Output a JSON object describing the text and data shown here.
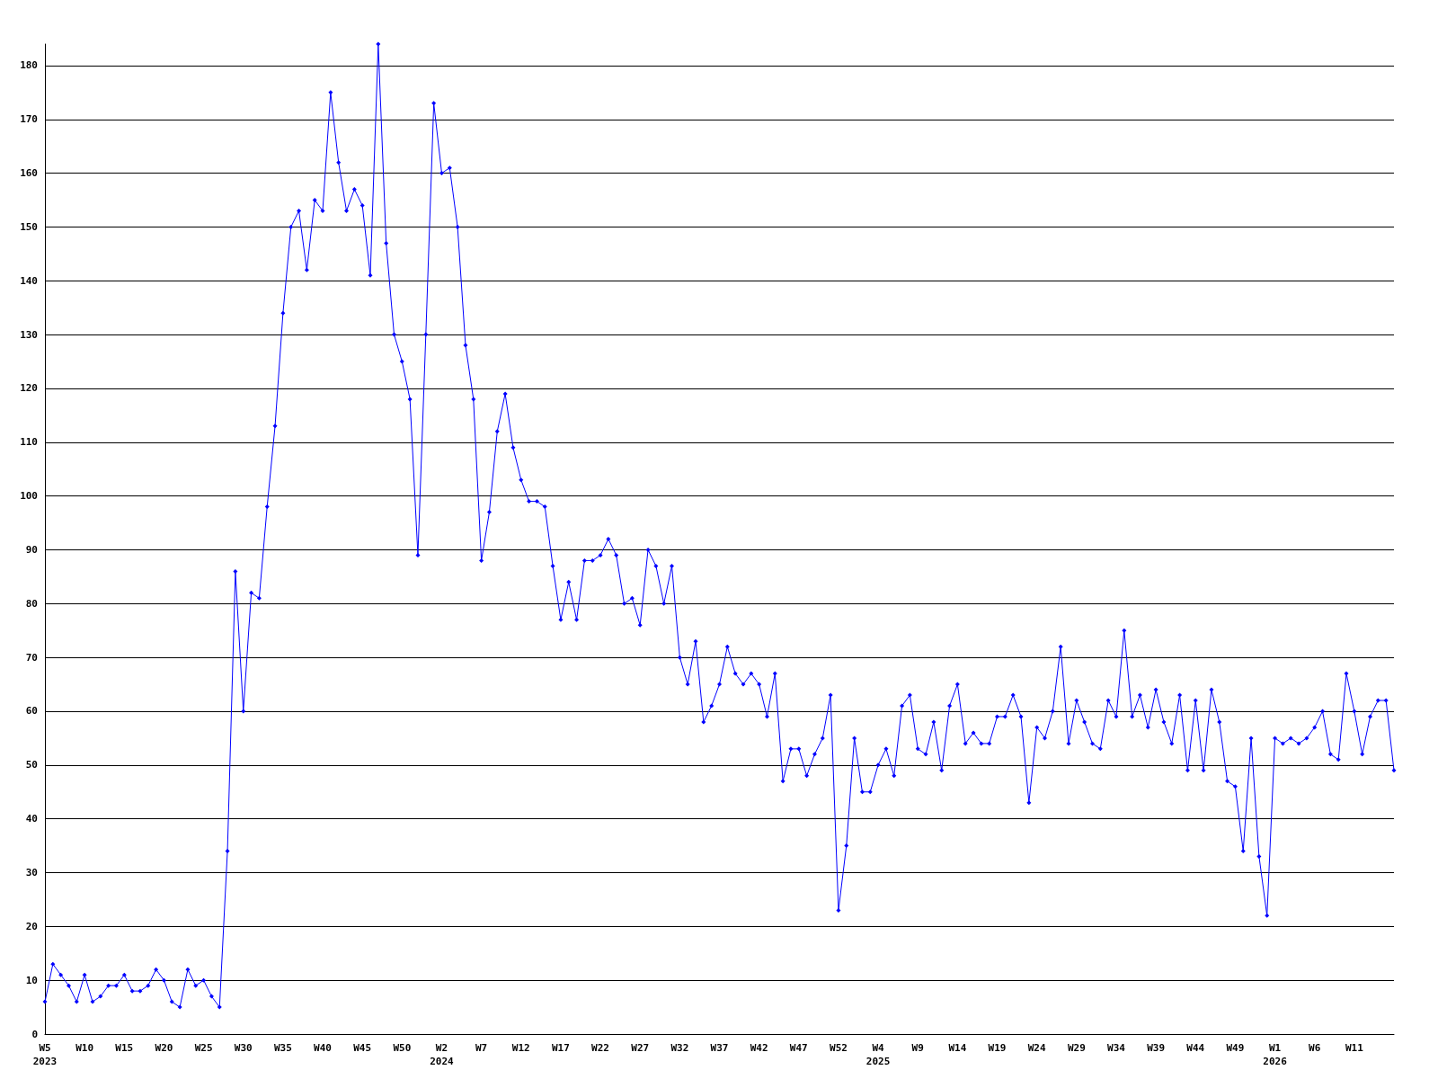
{
  "chart_data": {
    "type": "line",
    "categories": [
      "W5\n2023",
      null,
      null,
      null,
      null,
      "W10",
      null,
      null,
      null,
      null,
      "W15",
      null,
      null,
      null,
      null,
      "W20",
      null,
      null,
      null,
      null,
      "W25",
      null,
      null,
      null,
      null,
      "W30",
      null,
      null,
      null,
      null,
      "W35",
      null,
      null,
      null,
      null,
      "W40",
      null,
      null,
      null,
      null,
      "W45",
      null,
      null,
      null,
      null,
      "W50",
      null,
      null,
      null,
      null,
      "W2\n2024",
      null,
      null,
      null,
      null,
      "W7",
      null,
      null,
      null,
      null,
      "W12",
      null,
      null,
      null,
      null,
      "W17",
      null,
      null,
      null,
      null,
      "W22",
      null,
      null,
      null,
      null,
      "W27",
      null,
      null,
      null,
      null,
      "W32",
      null,
      null,
      null,
      null,
      "W37",
      null,
      null,
      null,
      null,
      "W42",
      null,
      null,
      null,
      null,
      "W47",
      null,
      null,
      null,
      null,
      "W52",
      null,
      null,
      null,
      null,
      "W4\n2025",
      null,
      null,
      null,
      null,
      "W9",
      null,
      null,
      null,
      null,
      "W14",
      null,
      null,
      null,
      null,
      "W19",
      null,
      null,
      null,
      null,
      "W24",
      null,
      null,
      null,
      null,
      "W29",
      null,
      null,
      null,
      null,
      "W34",
      null,
      null,
      null,
      null,
      "W39",
      null,
      null,
      null,
      null,
      "W44",
      null,
      null,
      null,
      null,
      "W49",
      null,
      null,
      null,
      null,
      "W1\n2026",
      null,
      null,
      null,
      null,
      "W6",
      null,
      null,
      null,
      null,
      "W11",
      null,
      null,
      null,
      null,
      null
    ],
    "series": [
      {
        "color": "#0000ff",
        "values": [
          6,
          13,
          11,
          9,
          6,
          11,
          6,
          7,
          9,
          9,
          11,
          8,
          8,
          9,
          12,
          10,
          6,
          5,
          12,
          9,
          10,
          7,
          5,
          34,
          86,
          60,
          82,
          81,
          98,
          113,
          134,
          150,
          153,
          142,
          155,
          153,
          175,
          162,
          153,
          157,
          154,
          141,
          184,
          147,
          130,
          125,
          118,
          89,
          130,
          173,
          160,
          161,
          150,
          128,
          118,
          88,
          97,
          112,
          119,
          109,
          103,
          99,
          99,
          98,
          87,
          77,
          84,
          77,
          88,
          88,
          89,
          92,
          89,
          80,
          81,
          76,
          90,
          87,
          80,
          87,
          70,
          65,
          73,
          58,
          61,
          65,
          72,
          67,
          65,
          67,
          65,
          59,
          67,
          47,
          53,
          53,
          48,
          52,
          55,
          63,
          23,
          35,
          55,
          45,
          45,
          50,
          53,
          48,
          61,
          63,
          53,
          52,
          58,
          49,
          61,
          65,
          54,
          56,
          54,
          54,
          59,
          59,
          63,
          59,
          43,
          57,
          55,
          60,
          72,
          54,
          62,
          58,
          54,
          53,
          62,
          59,
          75,
          59,
          63,
          57,
          64,
          58,
          54,
          63,
          49,
          62,
          49,
          64,
          58,
          47,
          46,
          34,
          55,
          33,
          22,
          55,
          54,
          55,
          54,
          55,
          57,
          60,
          52,
          51,
          67,
          60,
          52,
          59,
          62,
          62,
          49
        ]
      }
    ],
    "ylim": [
      0,
      184
    ],
    "yticks": [
      0,
      10,
      20,
      30,
      40,
      50,
      60,
      70,
      80,
      90,
      100,
      110,
      120,
      130,
      140,
      150,
      160,
      170,
      180
    ],
    "grid": "y",
    "marker": "diamond",
    "line_style": "solid"
  }
}
